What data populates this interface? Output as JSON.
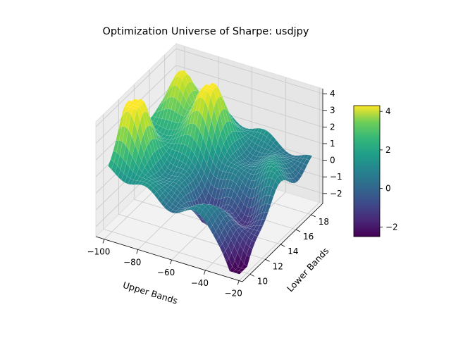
{
  "chart_data": {
    "type": "surface3d",
    "title": "Optimization Universe of Sharpe: usdjpy",
    "xlabel": "Upper Bands",
    "ylabel": "Lower Bands",
    "zlabel": "",
    "xlim": [
      -105,
      -18
    ],
    "ylim": [
      9,
      19.5
    ],
    "zlim": [
      -2.6,
      4.3
    ],
    "x_ticks": [
      "−100",
      "−80",
      "−60",
      "−40",
      "−20"
    ],
    "x_tick_values": [
      -100,
      -80,
      -60,
      -40,
      -20
    ],
    "y_ticks": [
      "10",
      "12",
      "14",
      "16",
      "18"
    ],
    "y_tick_values": [
      10,
      12,
      14,
      16,
      18
    ],
    "z_ticks": [
      "−2",
      "−1",
      "0",
      "1",
      "2",
      "3",
      "4"
    ],
    "z_tick_values": [
      -2,
      -1,
      0,
      1,
      2,
      3,
      4
    ],
    "colormap": "viridis",
    "colorbar": {
      "ticks": [
        "−2",
        "0",
        "2",
        "4"
      ],
      "tick_values": [
        -2,
        0,
        2,
        4
      ],
      "range": [
        -2.5,
        4.3
      ],
      "placement": "right"
    },
    "surface_peaks": [
      {
        "x": -96,
        "y": 12,
        "z": 4.2
      },
      {
        "x": -70,
        "y": 16,
        "z": 4.3
      },
      {
        "x": -90,
        "y": 17,
        "z": 2.8
      },
      {
        "x": -45,
        "y": 11,
        "z": 1.2
      },
      {
        "x": -30,
        "y": 15,
        "z": 2.0
      }
    ],
    "surface_troughs": [
      {
        "x": -22,
        "y": 9.5,
        "z": -2.5
      },
      {
        "x": -55,
        "y": 12.5,
        "z": -1.6
      },
      {
        "x": -35,
        "y": 13,
        "z": -1.3
      }
    ]
  }
}
